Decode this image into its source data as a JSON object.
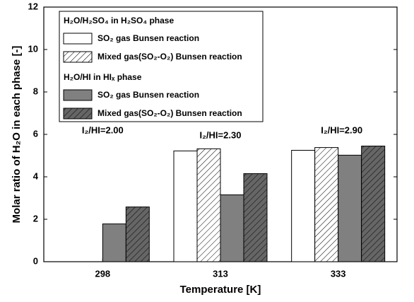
{
  "chart_data": {
    "type": "bar",
    "xlabel": "Temperature [K]",
    "ylabel": "Molar ratio of H₂O in each phase [-]",
    "categories": [
      "298",
      "313",
      "333"
    ],
    "ylim": [
      0,
      12
    ],
    "yticks": [
      0,
      2,
      4,
      6,
      8,
      10,
      12
    ],
    "legend_groups": [
      "H₂O/H₂SO₄ in H₂SO₄ phase",
      "H₂O/HI in HIₓ phase"
    ],
    "annotations": [
      "I₂/HI=2.00",
      "I₂/HI=2.30",
      "I₂/HI=2.90"
    ],
    "series": [
      {
        "name": "SO₂ gas Bunsen reaction",
        "color": "#ffffff",
        "hatch": false,
        "values": [
          null,
          5.22,
          5.25
        ]
      },
      {
        "name": "Mixed gas(SO₂-O₂) Bunsen reaction",
        "color": "#ffffff",
        "hatch": true,
        "values": [
          null,
          5.32,
          5.38
        ]
      },
      {
        "name": "SO₂ gas Bunsen reaction",
        "color": "#808080",
        "hatch": false,
        "values": [
          1.78,
          3.15,
          5.02
        ]
      },
      {
        "name": "Mixed gas(SO₂-O₂) Bunsen reaction",
        "color": "#666666",
        "hatch": true,
        "values": [
          2.58,
          4.15,
          5.45
        ]
      }
    ]
  }
}
